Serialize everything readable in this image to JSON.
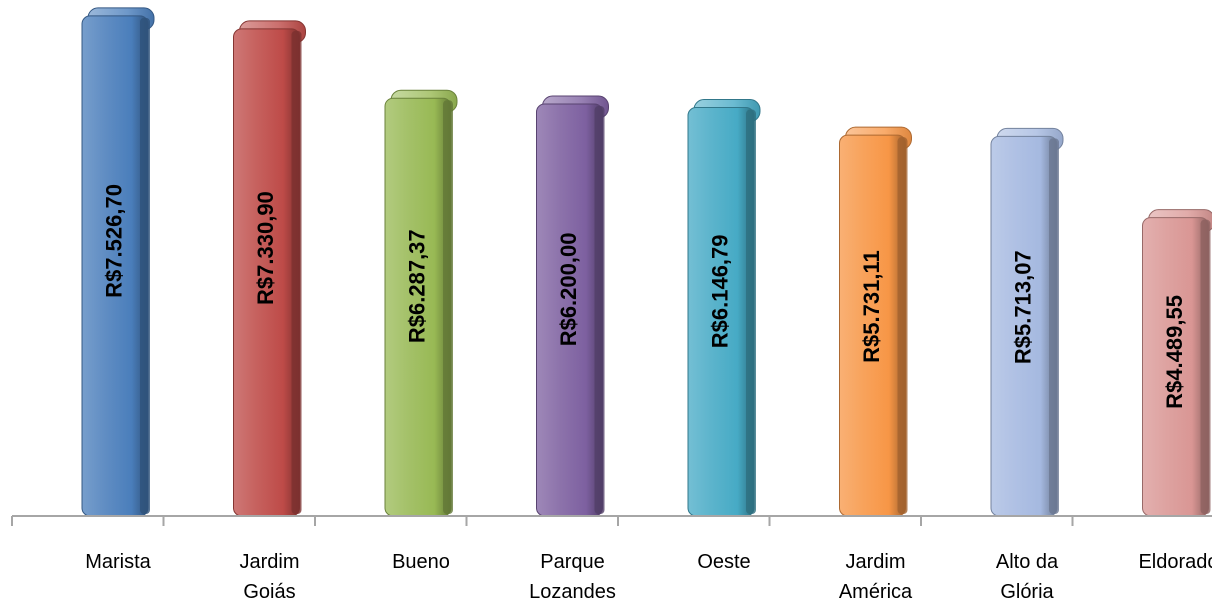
{
  "chart_data": {
    "type": "bar",
    "title": "",
    "xlabel": "",
    "ylabel": "",
    "ylim": [
      0,
      7600
    ],
    "grid": false,
    "legend": "none",
    "categories": [
      [
        "Marista"
      ],
      [
        "Jardim",
        "Goiás"
      ],
      [
        "Bueno"
      ],
      [
        "Parque",
        "Lozandes"
      ],
      [
        "Oeste"
      ],
      [
        "Jardim",
        "América"
      ],
      [
        "Alto da",
        "Glória"
      ],
      [
        "Eldorado"
      ]
    ],
    "values": [
      7526.7,
      7330.9,
      6287.37,
      6200.0,
      6146.79,
      5731.11,
      5713.07,
      4489.55
    ],
    "data_labels": [
      "R$7.526,70",
      "R$7.330,90",
      "R$6.287,37",
      "R$6.200,00",
      "R$6.146,79",
      "R$5.731,11",
      "R$5.713,07",
      "R$4.489,55"
    ],
    "colors": [
      "#4a7ebb",
      "#be4b48",
      "#98b954",
      "#7d60a0",
      "#46aac5",
      "#f79646",
      "#a5b9e0",
      "#d99694"
    ],
    "axis_color": "#a6a6a6"
  }
}
